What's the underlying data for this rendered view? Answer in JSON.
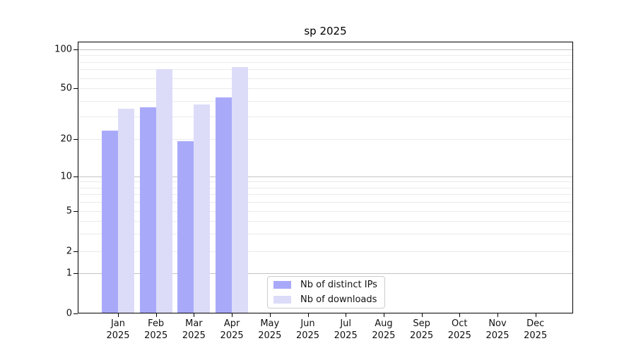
{
  "chart_data": {
    "type": "bar",
    "title": "sp 2025",
    "categories": [
      "Jan",
      "Feb",
      "Mar",
      "Apr",
      "May",
      "Jun",
      "Jul",
      "Aug",
      "Sep",
      "Oct",
      "Nov",
      "Dec"
    ],
    "category_sublabel": "2025",
    "series": [
      {
        "name": "Nb of distinct IPs",
        "color": "#a9a9fa",
        "values": [
          23,
          35,
          19,
          42,
          null,
          null,
          null,
          null,
          null,
          null,
          null,
          null
        ]
      },
      {
        "name": "Nb of downloads",
        "color": "#dcdcf9",
        "values": [
          34,
          69,
          37,
          72,
          null,
          null,
          null,
          null,
          null,
          null,
          null,
          null
        ]
      }
    ],
    "yscale": "symlog",
    "yticks": [
      0,
      1,
      2,
      5,
      10,
      20,
      50,
      100
    ],
    "ylim": [
      0,
      112
    ],
    "grid": "horizontal",
    "gridline_values": [
      1,
      2,
      3,
      4,
      5,
      6,
      7,
      8,
      9,
      10,
      20,
      30,
      40,
      50,
      60,
      70,
      80,
      90,
      100
    ],
    "grid_major_values": [
      1,
      10,
      100
    ],
    "legend_position": "bottom-center-inside",
    "colors": {
      "background": "#ffffff",
      "axis": "#000000",
      "grid_major": "#c3c3c3",
      "grid_minor": "#ebebeb",
      "text": "#111111"
    }
  }
}
